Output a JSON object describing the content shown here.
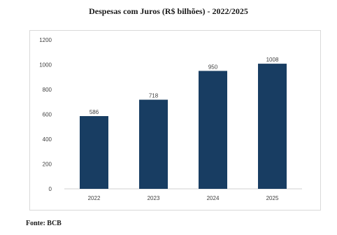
{
  "chart_data": {
    "type": "bar",
    "title": "Despesas com Juros (R$ bilhões)  -  2022/2025",
    "categories": [
      "2022",
      "2023",
      "2024",
      "2025"
    ],
    "values": [
      586,
      718,
      950,
      1008
    ],
    "data_labels": [
      "586",
      "718",
      "950",
      "1008"
    ],
    "ylim": [
      0,
      1200
    ],
    "yticks": [
      "0",
      "200",
      "400",
      "600",
      "800",
      "1000",
      "1200"
    ],
    "xlabel": "",
    "ylabel": "",
    "bar_color": "#183d62",
    "grid": false,
    "legend": "none"
  },
  "footer": {
    "source": "Fonte: BCB"
  }
}
